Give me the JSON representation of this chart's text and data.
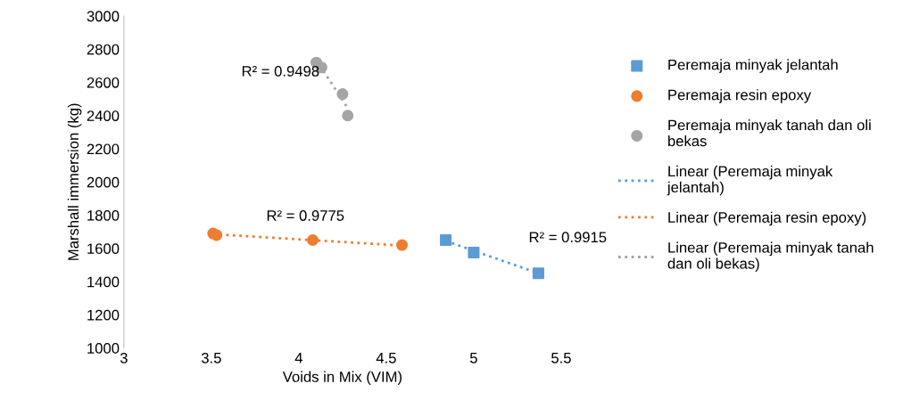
{
  "chart_data": {
    "type": "scatter",
    "xlabel": "Voids in Mix (VIM)",
    "ylabel": "Marshall immersion (kg)",
    "xlim": [
      3,
      5.5
    ],
    "xticks": [
      3,
      3.5,
      4,
      4.5,
      5,
      5.5
    ],
    "ylim": [
      1000,
      3000
    ],
    "yticks": [
      1000,
      1200,
      1400,
      1600,
      1800,
      2000,
      2200,
      2400,
      2600,
      2800,
      3000
    ],
    "grid": false,
    "legend": "right",
    "series": [
      {
        "name": "Peremaja minyak jelantah",
        "marker": "square",
        "color": "#5b9bd5",
        "x": [
          4.84,
          5.0,
          5.37
        ],
        "values": [
          1650,
          1575,
          1450
        ]
      },
      {
        "name": "Peremaja resin epoxy",
        "marker": "circle",
        "color": "#ed7d31",
        "x": [
          3.51,
          3.53,
          4.08,
          4.59
        ],
        "values": [
          1690,
          1680,
          1650,
          1620
        ]
      },
      {
        "name": "Peremaja minyak tanah dan oli bekas",
        "marker": "circle",
        "color": "#a5a5a5",
        "x": [
          4.1,
          4.13,
          4.25,
          4.28
        ],
        "values": [
          2720,
          2690,
          2530,
          2400
        ]
      },
      {
        "name": "Linear (Peremaja minyak jelantah)",
        "type": "line",
        "line_style": "dotted",
        "color": "#5b9bd5",
        "x": [
          4.84,
          5.37
        ],
        "values": [
          1645,
          1450
        ]
      },
      {
        "name": "Linear (Peremaja resin epoxy)",
        "type": "line",
        "line_style": "dotted",
        "color": "#ed7d31",
        "x": [
          3.51,
          4.59
        ],
        "values": [
          1686,
          1617
        ]
      },
      {
        "name": "Linear (Peremaja minyak tanah dan oli bekas)",
        "type": "line",
        "line_style": "dotted",
        "color": "#a5a5a5",
        "x": [
          4.1,
          4.28
        ],
        "values": [
          2735,
          2445
        ]
      }
    ],
    "annotations": [
      "R² = 0.9498",
      "R² = 0.9775",
      "R² = 0.9915"
    ]
  }
}
